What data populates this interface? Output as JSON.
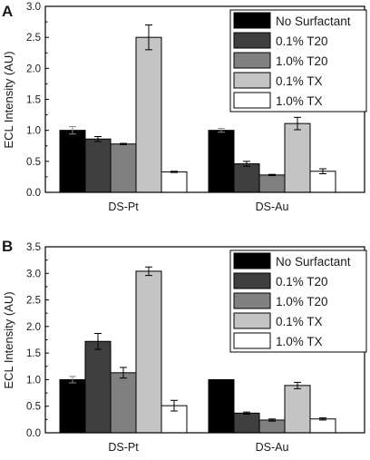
{
  "chart_data": [
    {
      "type": "bar",
      "panel_label": "A",
      "ylabel": "ECL Intensity (AU)",
      "ylim": [
        0,
        3.0
      ],
      "yticks": [
        "0.0",
        "0.5",
        "1.0",
        "1.5",
        "2.0",
        "2.5",
        "3.0"
      ],
      "categories": [
        "DS-Pt",
        "DS-Au"
      ],
      "legend_position": "top-right",
      "series": [
        {
          "name": "No Surfactant",
          "color": "#000000",
          "values": [
            1.0,
            1.0
          ],
          "errors": [
            0.06,
            0.03
          ]
        },
        {
          "name": "0.1% T20",
          "color": "#3f3f3f",
          "values": [
            0.86,
            0.46
          ],
          "errors": [
            0.04,
            0.04
          ]
        },
        {
          "name": "1.0% T20",
          "color": "#808080",
          "values": [
            0.78,
            0.28
          ],
          "errors": [
            0.01,
            0.01
          ]
        },
        {
          "name": "0.1% TX",
          "color": "#c4c4c4",
          "values": [
            2.5,
            1.11
          ],
          "errors": [
            0.2,
            0.1
          ]
        },
        {
          "name": "1.0% TX",
          "color": "#ffffff",
          "values": [
            0.33,
            0.34
          ],
          "errors": [
            0.01,
            0.04
          ]
        }
      ]
    },
    {
      "type": "bar",
      "panel_label": "B",
      "ylabel": "ECL Intensity (AU)",
      "ylim": [
        0,
        3.5
      ],
      "yticks": [
        "0.0",
        "0.5",
        "1.0",
        "1.5",
        "2.0",
        "2.5",
        "3.0",
        "3.5"
      ],
      "categories": [
        "DS-Pt",
        "DS-Au"
      ],
      "legend_position": "top-right",
      "series": [
        {
          "name": "No Surfactant",
          "color": "#000000",
          "values": [
            1.0,
            1.0
          ],
          "errors": [
            0.06,
            0.0
          ]
        },
        {
          "name": "0.1% T20",
          "color": "#3f3f3f",
          "values": [
            1.72,
            0.37
          ],
          "errors": [
            0.15,
            0.02
          ]
        },
        {
          "name": "1.0% T20",
          "color": "#808080",
          "values": [
            1.13,
            0.24
          ],
          "errors": [
            0.1,
            0.02
          ]
        },
        {
          "name": "0.1% TX",
          "color": "#c4c4c4",
          "values": [
            3.04,
            0.89
          ],
          "errors": [
            0.08,
            0.06
          ]
        },
        {
          "name": "1.0% TX",
          "color": "#ffffff",
          "values": [
            0.51,
            0.26
          ],
          "errors": [
            0.1,
            0.02
          ]
        }
      ]
    }
  ]
}
